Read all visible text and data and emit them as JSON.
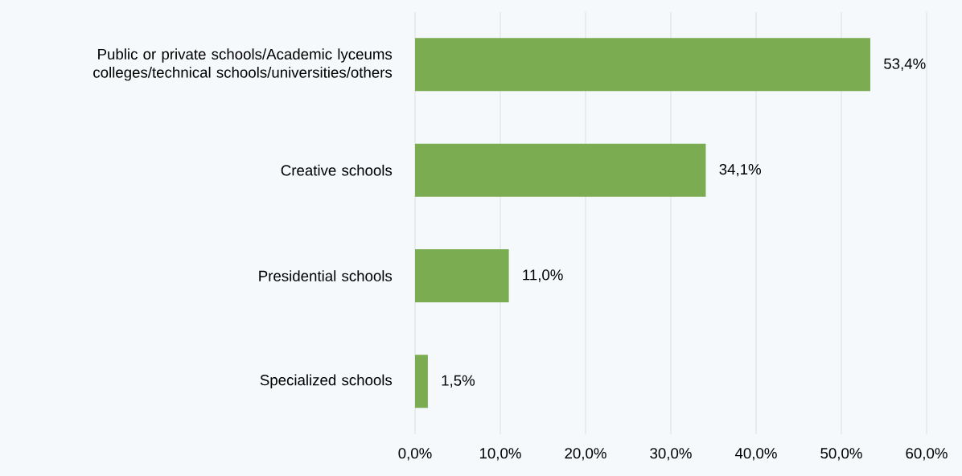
{
  "chart_data": {
    "type": "bar",
    "orientation": "horizontal",
    "categories": [
      "Public or private schools/Academic lyceums colleges/technical schools/universities/others",
      "Creative schools",
      "Presidential schools",
      "Specialized schools"
    ],
    "values": [
      53.4,
      34.1,
      11.0,
      1.5
    ],
    "value_labels": [
      "53,4%",
      "34,1%",
      "11,0%",
      "1,5%"
    ],
    "color": "#7cac52",
    "xlim": [
      0,
      60
    ],
    "xticks": [
      {
        "value": 0,
        "label": "0,0%"
      },
      {
        "value": 10,
        "label": "10,0%"
      },
      {
        "value": 20,
        "label": "20,0%"
      },
      {
        "value": 30,
        "label": "30,0%"
      },
      {
        "value": 40,
        "label": "40,0%"
      },
      {
        "value": 50,
        "label": "50,0%"
      },
      {
        "value": 60,
        "label": "60,0%"
      }
    ],
    "grid": "x"
  }
}
